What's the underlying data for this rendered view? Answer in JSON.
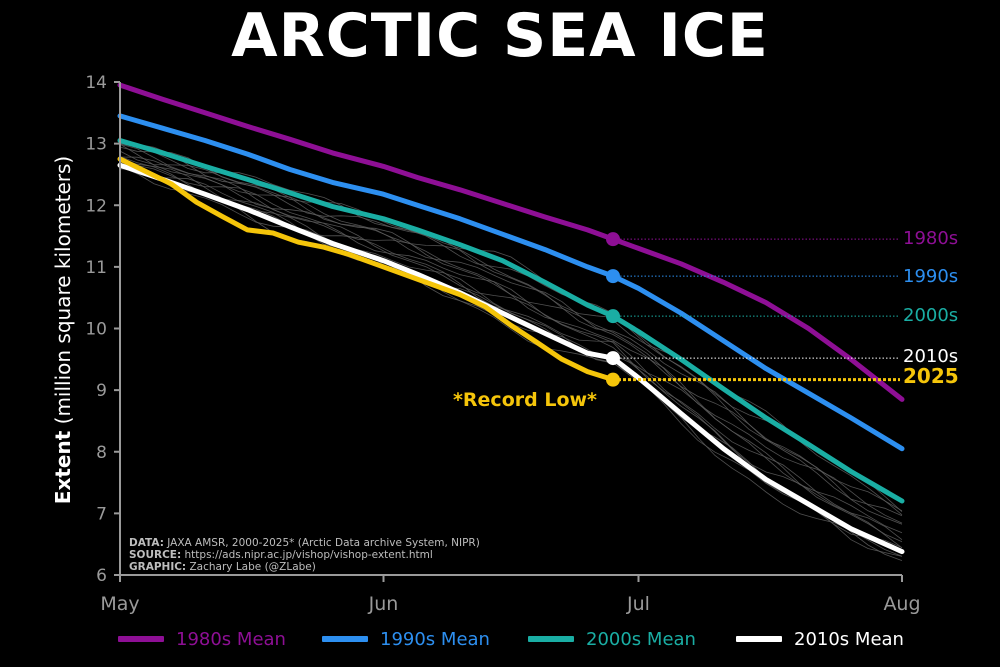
{
  "chart_data": {
    "type": "line",
    "title": "ARCTIC SEA ICE",
    "ylabel_bold": "Extent",
    "ylabel": "(million square kilometers)",
    "xlabel": "",
    "x_ticks": [
      "May",
      "Jun",
      "Jul",
      "Aug"
    ],
    "x_tick_days": [
      0,
      31,
      61,
      92
    ],
    "x_range_days": [
      0,
      92
    ],
    "ylim": [
      6,
      14
    ],
    "y_ticks": [
      6,
      7,
      8,
      9,
      10,
      11,
      12,
      13,
      14
    ],
    "grid": false,
    "legend_position": "bottom",
    "series": [
      {
        "name": "1980s Mean",
        "end_label": "1980s",
        "color": "#8e0f95",
        "x": [
          0,
          5,
          10,
          15,
          20,
          25,
          31,
          35,
          40,
          45,
          50,
          55,
          58,
          61,
          66,
          71,
          76,
          81,
          86,
          92
        ],
        "values": [
          13.95,
          13.72,
          13.5,
          13.28,
          13.07,
          12.85,
          12.63,
          12.45,
          12.25,
          12.03,
          11.81,
          11.6,
          11.45,
          11.3,
          11.05,
          10.75,
          10.42,
          10.0,
          9.5,
          8.85
        ]
      },
      {
        "name": "1990s Mean",
        "end_label": "1990s",
        "color": "#2d8ff0",
        "x": [
          0,
          5,
          10,
          15,
          20,
          25,
          31,
          35,
          40,
          45,
          50,
          55,
          58,
          61,
          66,
          71,
          76,
          81,
          86,
          92
        ],
        "values": [
          13.45,
          13.25,
          13.05,
          12.83,
          12.58,
          12.37,
          12.18,
          12.0,
          11.78,
          11.53,
          11.28,
          11.0,
          10.85,
          10.65,
          10.25,
          9.8,
          9.35,
          8.95,
          8.55,
          8.05
        ]
      },
      {
        "name": "2000s Mean",
        "end_label": "2000s",
        "color": "#1aaea4",
        "x": [
          0,
          5,
          10,
          15,
          20,
          25,
          31,
          35,
          40,
          45,
          50,
          55,
          58,
          61,
          66,
          71,
          76,
          81,
          86,
          92
        ],
        "values": [
          13.05,
          12.85,
          12.63,
          12.42,
          12.2,
          11.98,
          11.78,
          11.6,
          11.36,
          11.1,
          10.75,
          10.38,
          10.2,
          9.95,
          9.5,
          9.02,
          8.55,
          8.12,
          7.68,
          7.2
        ]
      },
      {
        "name": "2010s Mean",
        "end_label": "2010s",
        "color": "#ffffff",
        "x": [
          0,
          5,
          10,
          15,
          20,
          25,
          31,
          35,
          40,
          45,
          50,
          55,
          58,
          61,
          66,
          71,
          76,
          81,
          86,
          92
        ],
        "values": [
          12.65,
          12.42,
          12.18,
          11.93,
          11.65,
          11.38,
          11.1,
          10.88,
          10.58,
          10.25,
          9.92,
          9.6,
          9.52,
          9.2,
          8.62,
          8.05,
          7.55,
          7.15,
          6.75,
          6.38
        ]
      },
      {
        "name": "2025",
        "end_label": "2025",
        "color": "#f5c50a",
        "x": [
          0,
          3,
          6,
          9,
          12,
          15,
          18,
          21,
          24,
          27,
          31,
          34,
          37,
          40,
          43,
          46,
          49,
          52,
          55,
          58
        ],
        "values": [
          12.75,
          12.55,
          12.35,
          12.05,
          11.82,
          11.6,
          11.55,
          11.4,
          11.32,
          11.2,
          11.0,
          10.85,
          10.7,
          10.55,
          10.35,
          10.05,
          9.78,
          9.5,
          9.3,
          9.17
        ]
      }
    ],
    "marker_day": 58,
    "annotation": "*Record Low*",
    "annotation_color": "#f5c50a",
    "background_years_color": "#5e5e5e"
  },
  "credits": {
    "data_label": "DATA:",
    "data_text": " JAXA AMSR, 2000-2025* (Arctic Data archive System, NIPR)",
    "source_label": "SOURCE:",
    "source_text": " https://ads.nipr.ac.jp/vishop/vishop-extent.html",
    "graphic_label": "GRAPHIC:",
    "graphic_text": " Zachary Labe (@ZLabe)"
  },
  "legend": {
    "items": [
      {
        "label": "1980s Mean",
        "color": "#8e0f95"
      },
      {
        "label": "1990s Mean",
        "color": "#2d8ff0"
      },
      {
        "label": "2000s Mean",
        "color": "#1aaea4"
      },
      {
        "label": "2010s Mean",
        "color": "#ffffff"
      }
    ]
  }
}
